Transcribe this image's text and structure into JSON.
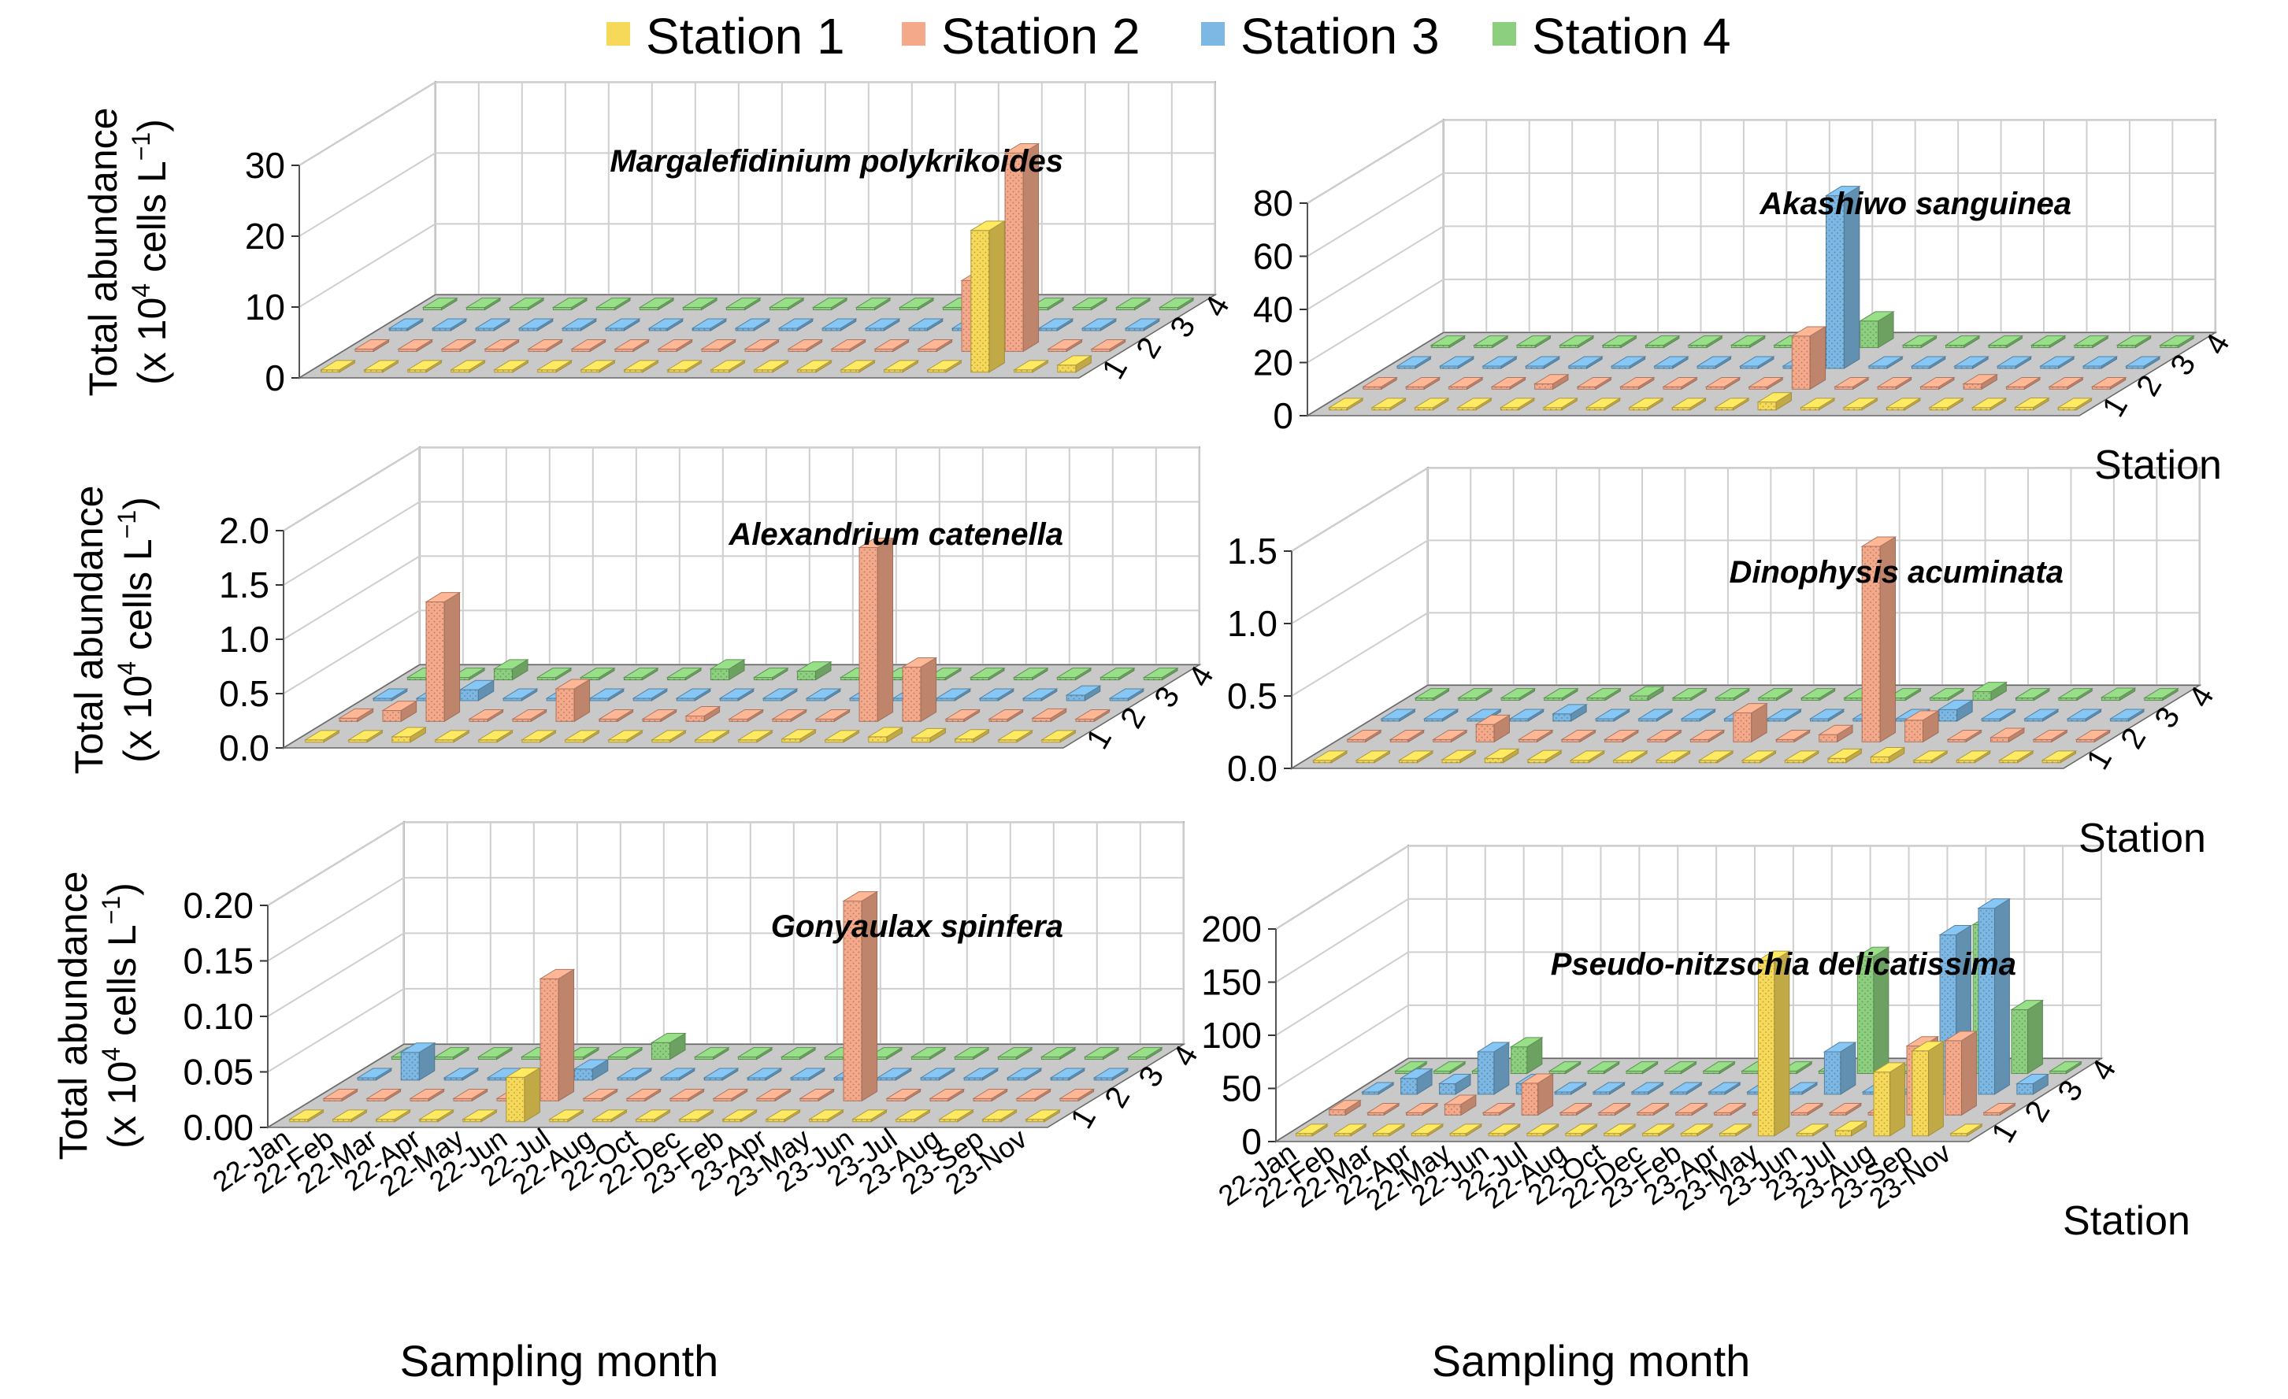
{
  "figure": {
    "legend_position": "top-center",
    "xlabel": "Sampling month",
    "ylabel_line1": "Total abundance",
    "ylabel_line2_prefix": "(x 10",
    "ylabel_exp": "4",
    "ylabel_line2_mid": " cells L",
    "ylabel_exp2": "−1",
    "ylabel_line2_suffix": ")",
    "zlabel": "Station",
    "station_ticks": [
      "1",
      "2",
      "3",
      "4"
    ],
    "grid": true
  },
  "colors": {
    "Station 1": "#f7d95a",
    "Station 2": "#f4a98a",
    "Station 3": "#7cb8e3",
    "Station 4": "#8ccf7e",
    "floor": "#c9c9c9",
    "grid": "#cfcfcf"
  },
  "chart_data": [
    {
      "type": "bar",
      "title": "Margalefidinium polykrikoides",
      "categories": [
        "22-Jan",
        "22-Feb",
        "22-Mar",
        "22-Apr",
        "22-May",
        "22-Jun",
        "22-Jul",
        "22-Aug",
        "22-Oct",
        "22-Dec",
        "23-Feb",
        "23-Apr",
        "23-May",
        "23-Jun",
        "23-Jul",
        "23-Aug",
        "23-Sep",
        "23-Nov"
      ],
      "yticks": [
        "0",
        "10",
        "20",
        "30"
      ],
      "ylim": [
        0,
        30
      ],
      "series": [
        {
          "name": "Station 1",
          "values": [
            0,
            0,
            0,
            0,
            0,
            0,
            0,
            0,
            0,
            0,
            0,
            0,
            0,
            0,
            0,
            20,
            0,
            1
          ]
        },
        {
          "name": "Station 2",
          "values": [
            0,
            0,
            0,
            0,
            0,
            0,
            0,
            0,
            0,
            0,
            0,
            0,
            0,
            0,
            10,
            28,
            0,
            0
          ]
        },
        {
          "name": "Station 3",
          "values": [
            0,
            0,
            0,
            0,
            0,
            0,
            0,
            0,
            0,
            0,
            0,
            0,
            0,
            0,
            0,
            0,
            0,
            0
          ]
        },
        {
          "name": "Station 4",
          "values": [
            0,
            0,
            0,
            0,
            0,
            0,
            0,
            0,
            0,
            0,
            0,
            0,
            0,
            0,
            0,
            0,
            0,
            0
          ]
        }
      ]
    },
    {
      "type": "bar",
      "title": "Akashiwo sanguinea",
      "categories": [
        "22-Jan",
        "22-Feb",
        "22-Mar",
        "22-Apr",
        "22-May",
        "22-Jun",
        "22-Jul",
        "22-Aug",
        "22-Oct",
        "22-Dec",
        "23-Feb",
        "23-Apr",
        "23-May",
        "23-Jun",
        "23-Jul",
        "23-Aug",
        "23-Sep",
        "23-Nov"
      ],
      "yticks": [
        "0",
        "20",
        "40",
        "60",
        "80"
      ],
      "ylim": [
        0,
        80
      ],
      "series": [
        {
          "name": "Station 1",
          "values": [
            0,
            0,
            0,
            0,
            0,
            0,
            0,
            0,
            0,
            0,
            3,
            0,
            0,
            0,
            0,
            0,
            1,
            0
          ]
        },
        {
          "name": "Station 2",
          "values": [
            0,
            0,
            0,
            0,
            2,
            0,
            0,
            0,
            0,
            0,
            20,
            0,
            0,
            0,
            2,
            0,
            0,
            0
          ]
        },
        {
          "name": "Station 3",
          "values": [
            0,
            0,
            0,
            0,
            0,
            0,
            0,
            0,
            0,
            0,
            65,
            0,
            0,
            0,
            0,
            0,
            0,
            0
          ]
        },
        {
          "name": "Station 4",
          "values": [
            0,
            0,
            0,
            0,
            0,
            0,
            0,
            0,
            0,
            0,
            10,
            0,
            0,
            0,
            0,
            0,
            0,
            0
          ]
        }
      ]
    },
    {
      "type": "bar",
      "title": "Alexandrium catenella",
      "categories": [
        "22-Jan",
        "22-Feb",
        "22-Mar",
        "22-Apr",
        "22-May",
        "22-Jun",
        "22-Jul",
        "22-Aug",
        "22-Oct",
        "22-Dec",
        "23-Feb",
        "23-Apr",
        "23-May",
        "23-Jun",
        "23-Jul",
        "23-Aug",
        "23-Sep",
        "23-Nov"
      ],
      "yticks": [
        "0.0",
        "0.5",
        "1.0",
        "1.5",
        "2.0"
      ],
      "ylim": [
        0,
        2.0
      ],
      "series": [
        {
          "name": "Station 1",
          "values": [
            0,
            0,
            0.05,
            0,
            0,
            0,
            0,
            0,
            0,
            0,
            0,
            0.03,
            0,
            0.05,
            0.04,
            0.03,
            0.02,
            0
          ]
        },
        {
          "name": "Station 2",
          "values": [
            0.03,
            0.1,
            1.1,
            0,
            0,
            0.3,
            0,
            0,
            0.05,
            0,
            0,
            0,
            1.6,
            0.5,
            0,
            0,
            0.03,
            0
          ]
        },
        {
          "name": "Station 3",
          "values": [
            0,
            0,
            0.1,
            0.02,
            0,
            0,
            0,
            0,
            0,
            0,
            0,
            0,
            0,
            0,
            0,
            0,
            0.05,
            0
          ]
        },
        {
          "name": "Station 4",
          "values": [
            0,
            0,
            0.1,
            0,
            0,
            0,
            0,
            0.1,
            0,
            0.08,
            0,
            0,
            0,
            0,
            0,
            0,
            0,
            0
          ]
        }
      ]
    },
    {
      "type": "bar",
      "title": "Dinophysis acuminata",
      "categories": [
        "22-Jan",
        "22-Feb",
        "22-Mar",
        "22-Apr",
        "22-May",
        "22-Jun",
        "22-Jul",
        "22-Aug",
        "22-Oct",
        "22-Dec",
        "23-Feb",
        "23-Apr",
        "23-May",
        "23-Jun",
        "23-Jul",
        "23-Aug",
        "23-Sep",
        "23-Nov"
      ],
      "yticks": [
        "0.0",
        "0.5",
        "1.0",
        "1.5"
      ],
      "ylim": [
        0,
        1.5
      ],
      "series": [
        {
          "name": "Station 1",
          "values": [
            0,
            0,
            0,
            0.02,
            0.03,
            0.02,
            0,
            0,
            0,
            0,
            0,
            0,
            0.03,
            0.04,
            0,
            0,
            0,
            0
          ]
        },
        {
          "name": "Station 2",
          "values": [
            0,
            0,
            0,
            0.12,
            0,
            0,
            0,
            0,
            0,
            0.2,
            0,
            0.05,
            1.35,
            0.15,
            0,
            0.03,
            0,
            0
          ]
        },
        {
          "name": "Station 3",
          "values": [
            0,
            0,
            0,
            0,
            0.05,
            0,
            0,
            0,
            0,
            0,
            0,
            0,
            0,
            0.08,
            0,
            0,
            0,
            0
          ]
        },
        {
          "name": "Station 4",
          "values": [
            0,
            0,
            0,
            0,
            0,
            0.03,
            0,
            0,
            0,
            0,
            0,
            0,
            0,
            0.06,
            0,
            0,
            0.02,
            0
          ]
        }
      ]
    },
    {
      "type": "bar",
      "title": "Gonyaulax spinfera",
      "categories": [
        "22-Jan",
        "22-Feb",
        "22-Mar",
        "22-Apr",
        "22-May",
        "22-Jun",
        "22-Jul",
        "22-Aug",
        "22-Oct",
        "22-Dec",
        "23-Feb",
        "23-Apr",
        "23-May",
        "23-Jun",
        "23-Jul",
        "23-Aug",
        "23-Sep",
        "23-Nov"
      ],
      "yticks": [
        "0.00",
        "0.05",
        "0.10",
        "0.15",
        "0.20"
      ],
      "ylim": [
        0,
        0.2
      ],
      "series": [
        {
          "name": "Station 1",
          "values": [
            0,
            0,
            0,
            0,
            0,
            0.04,
            0,
            0,
            0,
            0,
            0,
            0,
            0,
            0,
            0,
            0,
            0,
            0
          ]
        },
        {
          "name": "Station 2",
          "values": [
            0,
            0,
            0,
            0,
            0,
            0.11,
            0,
            0,
            0,
            0,
            0,
            0,
            0.18,
            0,
            0,
            0,
            0,
            0
          ]
        },
        {
          "name": "Station 3",
          "values": [
            0,
            0.025,
            0,
            0,
            0,
            0.01,
            0,
            0,
            0,
            0,
            0,
            0,
            0,
            0,
            0,
            0,
            0,
            0
          ]
        },
        {
          "name": "Station 4",
          "values": [
            0,
            0,
            0,
            0,
            0,
            0,
            0.015,
            0,
            0,
            0,
            0,
            0,
            0,
            0,
            0,
            0,
            0,
            0
          ]
        }
      ]
    },
    {
      "type": "bar",
      "title": "Pseudo-nitzschia delicatissima",
      "categories": [
        "22-Jan",
        "22-Feb",
        "22-Mar",
        "22-Apr",
        "22-May",
        "22-Jun",
        "22-Jul",
        "22-Aug",
        "22-Oct",
        "22-Dec",
        "23-Feb",
        "23-Apr",
        "23-May",
        "23-Jun",
        "23-Jul",
        "23-Aug",
        "23-Sep",
        "23-Nov"
      ],
      "yticks": [
        "0",
        "50",
        "100",
        "150",
        "200"
      ],
      "ylim": [
        0,
        200
      ],
      "series": [
        {
          "name": "Station 1",
          "values": [
            0,
            0,
            0,
            0,
            0,
            0,
            0,
            0,
            0,
            0,
            0,
            0,
            165,
            0,
            5,
            60,
            80,
            0
          ]
        },
        {
          "name": "Station 2",
          "values": [
            5,
            0,
            0,
            10,
            0,
            30,
            0,
            0,
            0,
            0,
            0,
            0,
            0,
            0,
            0,
            65,
            70,
            0
          ]
        },
        {
          "name": "Station 3",
          "values": [
            0,
            15,
            10,
            40,
            10,
            0,
            0,
            0,
            0,
            0,
            0,
            0,
            40,
            0,
            0,
            150,
            175,
            10
          ]
        },
        {
          "name": "Station 4",
          "values": [
            0,
            0,
            0,
            25,
            0,
            0,
            0,
            0,
            0,
            0,
            0,
            0,
            110,
            0,
            0,
            140,
            60,
            0
          ]
        }
      ]
    }
  ]
}
